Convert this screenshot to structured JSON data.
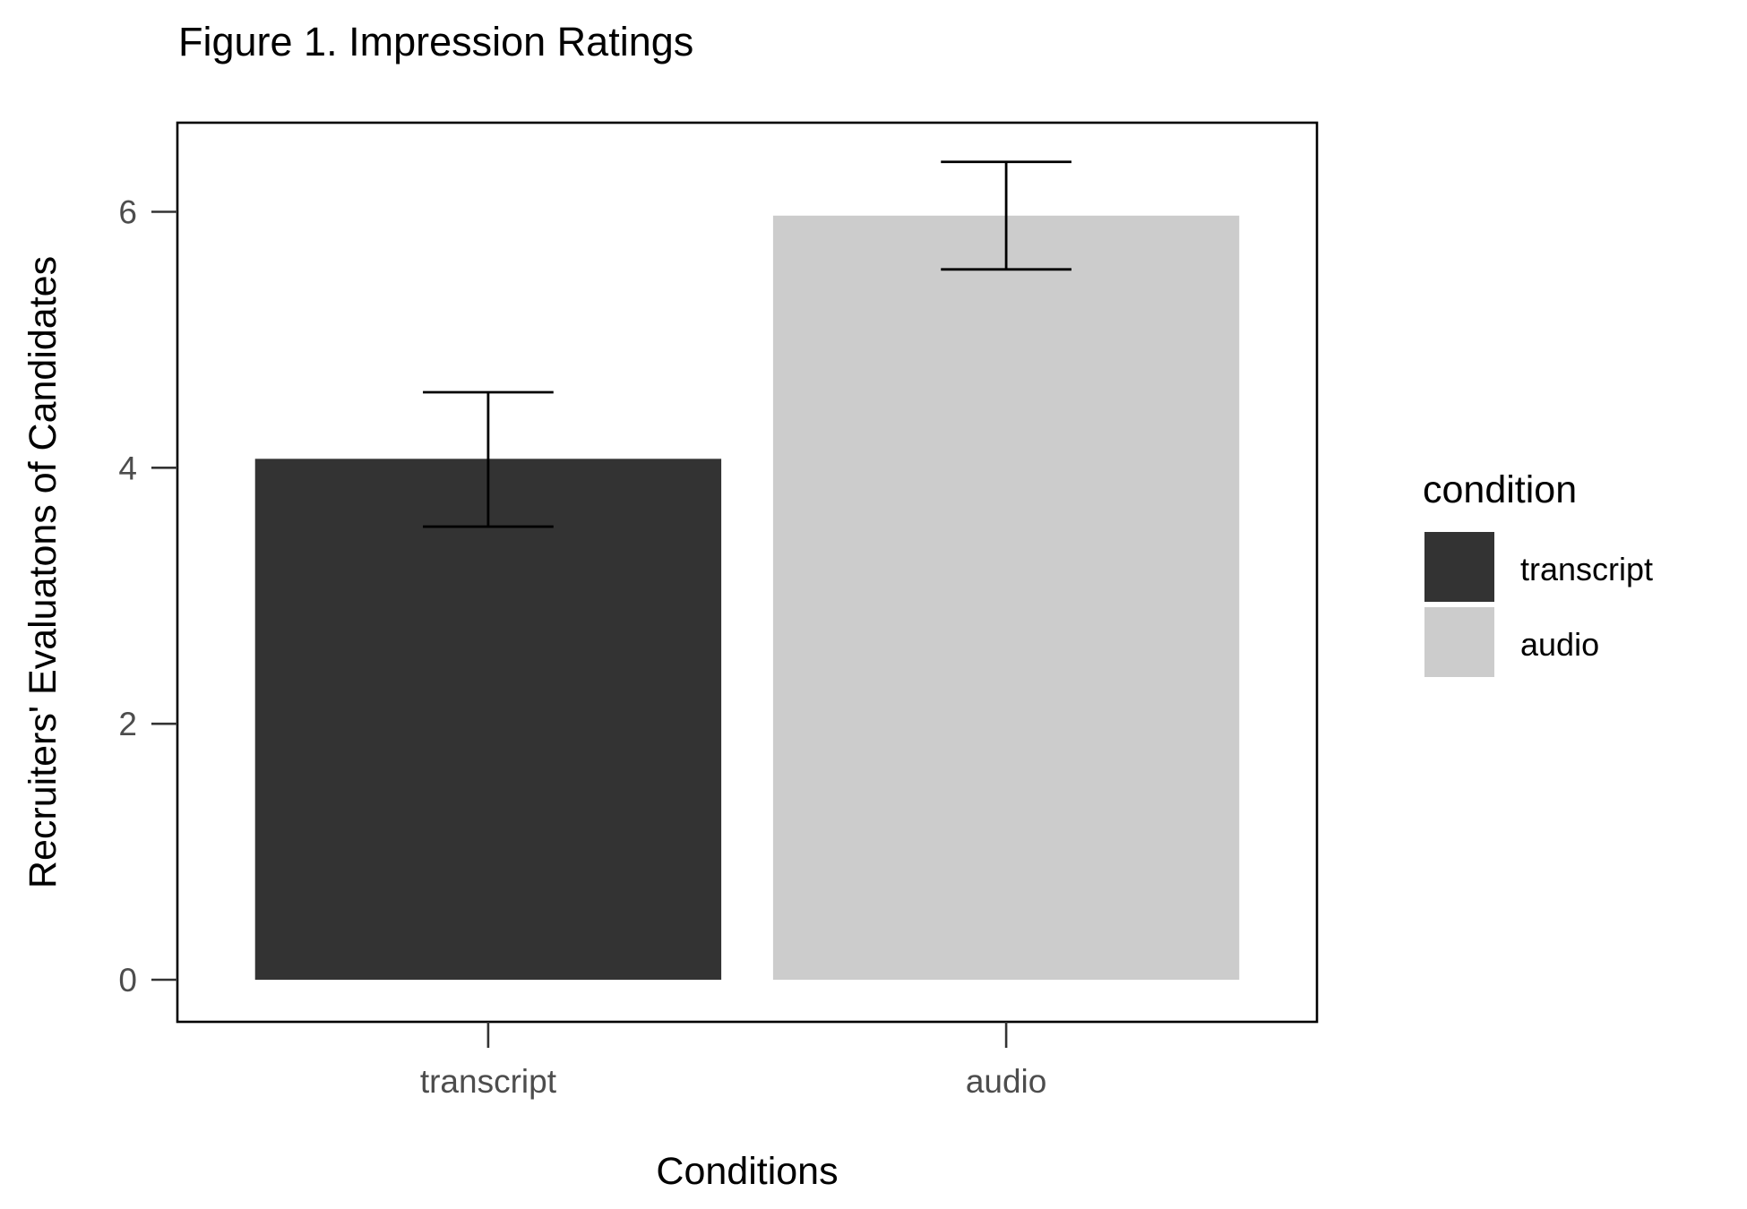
{
  "chart_data": {
    "type": "bar",
    "title": "Figure 1. Impression Ratings",
    "xlabel": "Conditions",
    "ylabel": "Recruiters' Evaluatons of Candidates",
    "categories": [
      "transcript",
      "audio"
    ],
    "values": [
      4.07,
      5.97
    ],
    "error_bars": [
      {
        "lower": 3.54,
        "upper": 4.59
      },
      {
        "lower": 5.55,
        "upper": 6.39
      }
    ],
    "colors": [
      "#333333",
      "#cccccc"
    ],
    "ylim": [
      -0.32,
      6.7
    ],
    "yticks": [
      0,
      2,
      4,
      6
    ],
    "grid": false,
    "legend": {
      "title": "condition",
      "position": "right",
      "entries": [
        {
          "label": "transcript",
          "color": "#333333"
        },
        {
          "label": "audio",
          "color": "#cccccc"
        }
      ]
    }
  }
}
